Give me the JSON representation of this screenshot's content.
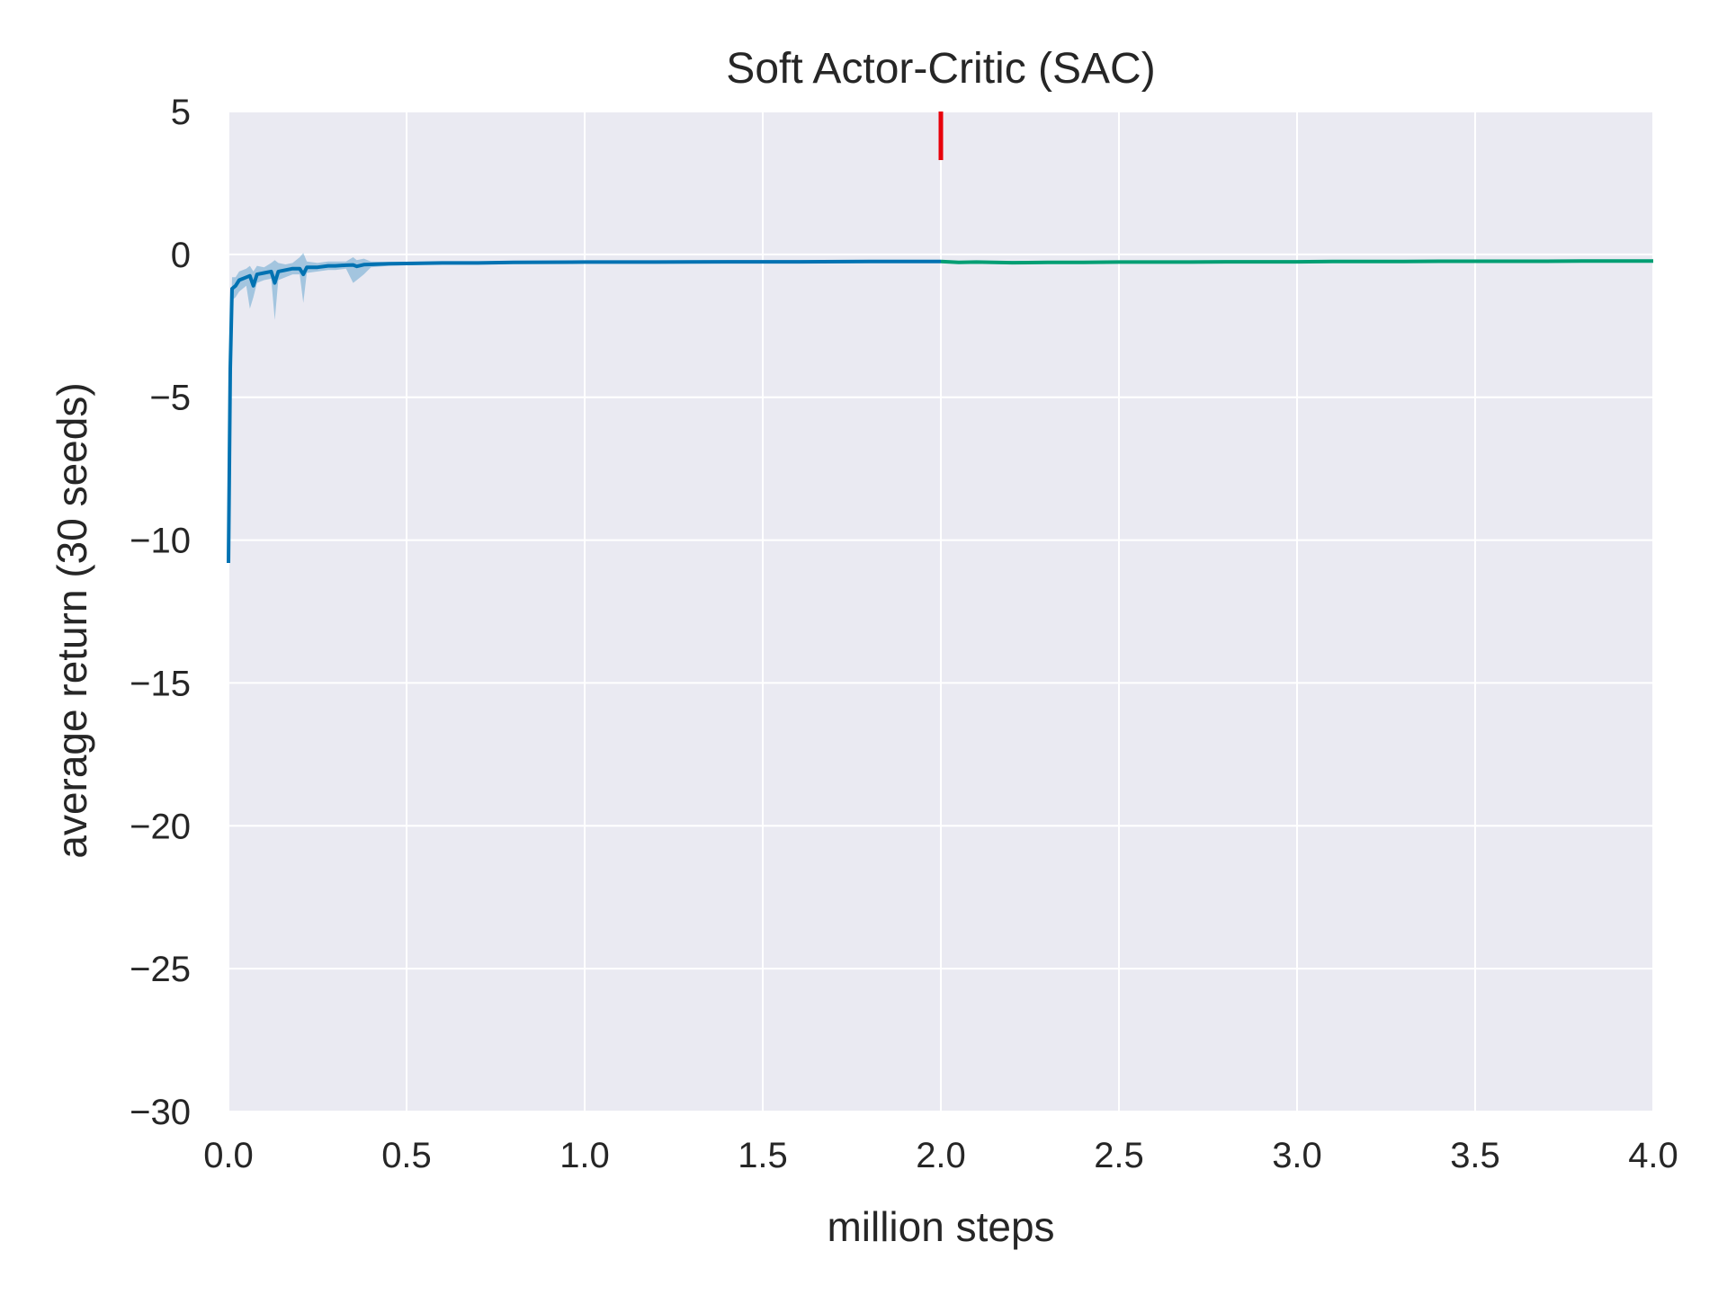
{
  "chart_data": {
    "type": "line",
    "title": "Soft Actor-Critic (SAC)",
    "xlabel": "million steps",
    "ylabel": "average return (30 seeds)",
    "xlim": [
      0,
      4
    ],
    "ylim": [
      -30,
      5
    ],
    "xticks": [
      0.0,
      0.5,
      1.0,
      1.5,
      2.0,
      2.5,
      3.0,
      3.5,
      4.0
    ],
    "xtick_labels": [
      "0.0",
      "0.5",
      "1.0",
      "1.5",
      "2.0",
      "2.5",
      "3.0",
      "3.5",
      "4.0"
    ],
    "yticks": [
      -30,
      -25,
      -20,
      -15,
      -10,
      -5,
      0,
      5
    ],
    "ytick_labels": [
      "−30",
      "−25",
      "−20",
      "−15",
      "−10",
      "−5",
      "0",
      "5"
    ],
    "grid": true,
    "background": "#eaeaf2",
    "grid_color": "#ffffff",
    "series": [
      {
        "color": "#0072b2",
        "band_color": "#0072b2",
        "x": [
          0.0,
          0.005,
          0.01,
          0.02,
          0.03,
          0.05,
          0.06,
          0.07,
          0.08,
          0.1,
          0.12,
          0.13,
          0.14,
          0.16,
          0.18,
          0.2,
          0.21,
          0.22,
          0.25,
          0.28,
          0.3,
          0.33,
          0.35,
          0.36,
          0.38,
          0.4,
          0.45,
          0.5,
          0.6,
          0.7,
          0.8,
          1.0,
          1.2,
          1.4,
          1.6,
          1.8,
          2.0
        ],
        "y": [
          -10.8,
          -4.0,
          -1.2,
          -1.1,
          -0.9,
          -0.8,
          -0.75,
          -1.1,
          -0.7,
          -0.65,
          -0.6,
          -1.0,
          -0.6,
          -0.55,
          -0.5,
          -0.5,
          -0.7,
          -0.45,
          -0.45,
          -0.4,
          -0.4,
          -0.38,
          -0.37,
          -0.42,
          -0.36,
          -0.35,
          -0.33,
          -0.32,
          -0.3,
          -0.3,
          -0.28,
          -0.27,
          -0.27,
          -0.26,
          -0.26,
          -0.25,
          -0.25
        ],
        "lower": [
          -10.8,
          -5.0,
          -1.6,
          -1.5,
          -1.3,
          -1.1,
          -1.9,
          -1.5,
          -1.0,
          -0.9,
          -0.85,
          -2.3,
          -0.9,
          -0.8,
          -0.7,
          -0.7,
          -1.7,
          -0.65,
          -0.6,
          -0.55,
          -0.55,
          -0.5,
          -1.0,
          -0.9,
          -0.7,
          -0.45,
          -0.4,
          -0.38,
          -0.35,
          -0.34,
          -0.32,
          -0.3,
          -0.3,
          -0.29,
          -0.29,
          -0.28,
          -0.28
        ],
        "upper": [
          -10.8,
          -3.0,
          -0.8,
          -0.8,
          -0.6,
          -0.5,
          -0.4,
          -0.6,
          -0.4,
          -0.45,
          -0.3,
          -0.2,
          -0.3,
          -0.35,
          -0.3,
          -0.1,
          0.05,
          -0.25,
          -0.3,
          -0.25,
          -0.25,
          -0.25,
          -0.1,
          -0.2,
          -0.15,
          -0.25,
          -0.27,
          -0.27,
          -0.26,
          -0.26,
          -0.25,
          -0.24,
          -0.24,
          -0.23,
          -0.23,
          -0.22,
          -0.22
        ]
      },
      {
        "color": "#009e73",
        "x": [
          2.0,
          2.05,
          2.1,
          2.2,
          2.3,
          2.4,
          2.5,
          2.6,
          2.7,
          2.8,
          2.9,
          3.0,
          3.1,
          3.2,
          3.3,
          3.4,
          3.5,
          3.6,
          3.7,
          3.8,
          3.9,
          4.0
        ],
        "y": [
          -0.25,
          -0.28,
          -0.27,
          -0.29,
          -0.28,
          -0.28,
          -0.27,
          -0.27,
          -0.27,
          -0.26,
          -0.26,
          -0.26,
          -0.25,
          -0.25,
          -0.25,
          -0.24,
          -0.24,
          -0.24,
          -0.24,
          -0.23,
          -0.23,
          -0.23
        ]
      }
    ],
    "annotations": [
      {
        "type": "vertical-segment",
        "x": 2.0,
        "y_from": 3.3,
        "y_to": 5.0,
        "color": "#e8000b"
      }
    ]
  }
}
